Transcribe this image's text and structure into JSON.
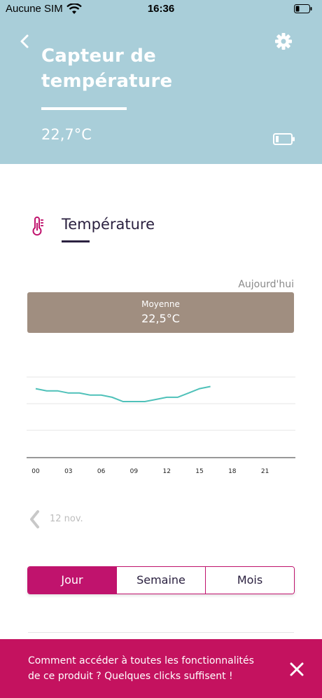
{
  "status_bar": {
    "carrier": "Aucune SIM",
    "time": "16:36"
  },
  "header": {
    "title": "Capteur de température",
    "current_value": "22,7°C",
    "background_color": "#a9ced9"
  },
  "icons": {
    "back": "chevron-left-icon",
    "settings": "gear-icon",
    "battery": "battery-icon",
    "thermometer": "thermometer-icon",
    "close": "close-icon"
  },
  "section": {
    "title": "Température",
    "accent_color": "#c0136d"
  },
  "summary": {
    "period": "Aujourd'hui",
    "average_label": "Moyenne",
    "average_value": "22,5°C"
  },
  "chart_data": {
    "type": "line",
    "x_ticks": [
      "00",
      "03",
      "06",
      "09",
      "12",
      "15",
      "18",
      "21"
    ],
    "x": [
      0,
      1,
      2,
      3,
      4,
      5,
      6,
      7,
      8,
      9,
      10,
      11,
      12,
      13,
      14,
      15,
      16
    ],
    "series": [
      {
        "values": [
          22.6,
          22.55,
          22.55,
          22.5,
          22.5,
          22.45,
          22.45,
          22.4,
          22.3,
          22.3,
          22.3,
          22.35,
          22.4,
          22.4,
          22.5,
          22.6,
          22.65
        ]
      }
    ],
    "color": "#4fc1b9",
    "grid": true
  },
  "navigation": {
    "previous_date": "12 nov."
  },
  "segments": {
    "items": [
      "Jour",
      "Semaine",
      "Mois"
    ],
    "active": "Jour"
  },
  "banner": {
    "text": "Comment accéder à toutes les fonctionnalités de ce produit ? Quelques clicks suffisent !",
    "color": "#c4125f"
  }
}
